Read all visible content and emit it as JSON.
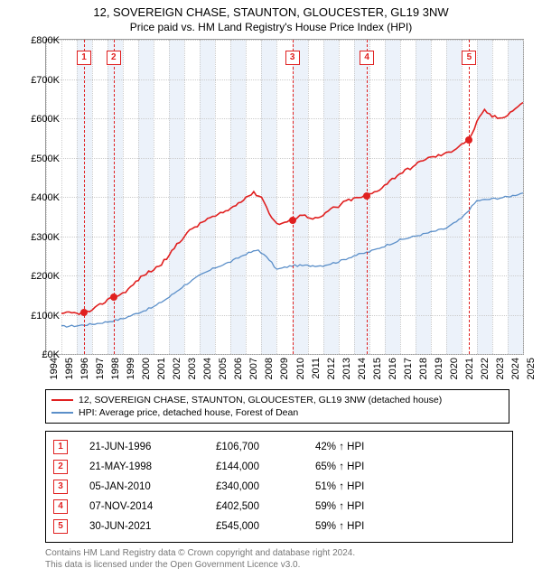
{
  "title": "12, SOVEREIGN CHASE, STAUNTON, GLOUCESTER, GL19 3NW",
  "subtitle": "Price paid vs. HM Land Registry's House Price Index (HPI)",
  "legend": {
    "series1": {
      "label": "12, SOVEREIGN CHASE, STAUNTON, GLOUCESTER, GL19 3NW (detached house)",
      "color": "#e02020"
    },
    "series2": {
      "label": "HPI: Average price, detached house, Forest of Dean",
      "color": "#5b8fc9"
    }
  },
  "y_axis": {
    "min": 0,
    "max": 800000,
    "step": 100000,
    "ticks": [
      "£0K",
      "£100K",
      "£200K",
      "£300K",
      "£400K",
      "£500K",
      "£600K",
      "£700K",
      "£800K"
    ]
  },
  "x_axis": {
    "min": 1994,
    "max": 2025,
    "step": 1,
    "ticks": [
      "1994",
      "1995",
      "1996",
      "1997",
      "1998",
      "1999",
      "2000",
      "2001",
      "2002",
      "2003",
      "2004",
      "2005",
      "2006",
      "2007",
      "2008",
      "2009",
      "2010",
      "2011",
      "2012",
      "2013",
      "2014",
      "2015",
      "2016",
      "2017",
      "2018",
      "2019",
      "2020",
      "2021",
      "2022",
      "2023",
      "2024",
      "2025"
    ]
  },
  "shaded_years": [
    1996,
    1998,
    2000,
    2002,
    2004,
    2006,
    2008,
    2010,
    2012,
    2014,
    2016,
    2018,
    2020,
    2022,
    2024
  ],
  "events": [
    {
      "n": "1",
      "year": 1996.47,
      "date": "21-JUN-1996",
      "price_txt": "£106,700",
      "price_v": 106700,
      "delta": "42% ↑ HPI"
    },
    {
      "n": "2",
      "year": 1998.39,
      "date": "21-MAY-1998",
      "price_txt": "£144,000",
      "price_v": 144000,
      "delta": "65% ↑ HPI"
    },
    {
      "n": "3",
      "year": 2010.01,
      "date": "05-JAN-2010",
      "price_txt": "£340,000",
      "price_v": 340000,
      "delta": "51% ↑ HPI"
    },
    {
      "n": "4",
      "year": 2014.85,
      "date": "07-NOV-2014",
      "price_txt": "£402,500",
      "price_v": 402500,
      "delta": "59% ↑ HPI"
    },
    {
      "n": "5",
      "year": 2021.5,
      "date": "30-JUN-2021",
      "price_txt": "£545,000",
      "price_v": 545000,
      "delta": "59% ↑ HPI"
    }
  ],
  "series1_pts": [
    [
      1995.0,
      100000
    ],
    [
      1995.5,
      105000
    ],
    [
      1996.0,
      103000
    ],
    [
      1996.47,
      106700
    ],
    [
      1997.0,
      110000
    ],
    [
      1997.5,
      125000
    ],
    [
      1998.0,
      138000
    ],
    [
      1998.39,
      144000
    ],
    [
      1999.0,
      155000
    ],
    [
      1999.5,
      170000
    ],
    [
      2000.0,
      190000
    ],
    [
      2000.5,
      205000
    ],
    [
      2001.0,
      215000
    ],
    [
      2001.5,
      230000
    ],
    [
      2002.0,
      250000
    ],
    [
      2002.5,
      280000
    ],
    [
      2003.0,
      300000
    ],
    [
      2003.5,
      320000
    ],
    [
      2004.0,
      330000
    ],
    [
      2004.5,
      345000
    ],
    [
      2005.0,
      350000
    ],
    [
      2005.5,
      360000
    ],
    [
      2006.0,
      370000
    ],
    [
      2006.5,
      385000
    ],
    [
      2007.0,
      400000
    ],
    [
      2007.5,
      410000
    ],
    [
      2008.0,
      400000
    ],
    [
      2008.5,
      360000
    ],
    [
      2009.0,
      330000
    ],
    [
      2009.5,
      335000
    ],
    [
      2010.01,
      340000
    ],
    [
      2010.5,
      355000
    ],
    [
      2011.0,
      350000
    ],
    [
      2011.5,
      345000
    ],
    [
      2012.0,
      350000
    ],
    [
      2012.5,
      370000
    ],
    [
      2013.0,
      375000
    ],
    [
      2013.5,
      390000
    ],
    [
      2014.0,
      395000
    ],
    [
      2014.85,
      402500
    ],
    [
      2015.5,
      415000
    ],
    [
      2016.0,
      430000
    ],
    [
      2016.5,
      445000
    ],
    [
      2017.0,
      460000
    ],
    [
      2017.5,
      470000
    ],
    [
      2018.0,
      480000
    ],
    [
      2018.5,
      495000
    ],
    [
      2019.0,
      500000
    ],
    [
      2019.5,
      505000
    ],
    [
      2020.0,
      510000
    ],
    [
      2020.5,
      520000
    ],
    [
      2021.0,
      535000
    ],
    [
      2021.5,
      545000
    ],
    [
      2022.0,
      590000
    ],
    [
      2022.5,
      620000
    ],
    [
      2023.0,
      605000
    ],
    [
      2023.5,
      600000
    ],
    [
      2024.0,
      610000
    ],
    [
      2024.5,
      625000
    ],
    [
      2025.0,
      640000
    ]
  ],
  "series2_pts": [
    [
      1995.0,
      70000
    ],
    [
      1996.0,
      72000
    ],
    [
      1997.0,
      76000
    ],
    [
      1998.0,
      82000
    ],
    [
      1999.0,
      90000
    ],
    [
      2000.0,
      105000
    ],
    [
      2001.0,
      120000
    ],
    [
      2002.0,
      145000
    ],
    [
      2003.0,
      175000
    ],
    [
      2004.0,
      200000
    ],
    [
      2005.0,
      220000
    ],
    [
      2006.0,
      235000
    ],
    [
      2007.0,
      255000
    ],
    [
      2007.8,
      265000
    ],
    [
      2008.5,
      240000
    ],
    [
      2009.0,
      215000
    ],
    [
      2009.5,
      220000
    ],
    [
      2010.0,
      225000
    ],
    [
      2011.0,
      225000
    ],
    [
      2012.0,
      225000
    ],
    [
      2013.0,
      235000
    ],
    [
      2014.0,
      250000
    ],
    [
      2015.0,
      260000
    ],
    [
      2016.0,
      275000
    ],
    [
      2017.0,
      290000
    ],
    [
      2018.0,
      300000
    ],
    [
      2019.0,
      310000
    ],
    [
      2020.0,
      320000
    ],
    [
      2021.0,
      345000
    ],
    [
      2022.0,
      390000
    ],
    [
      2023.0,
      395000
    ],
    [
      2024.0,
      400000
    ],
    [
      2025.0,
      410000
    ]
  ],
  "grid_color": "#cccccc",
  "footer": {
    "l1": "Contains HM Land Registry data © Crown copyright and database right 2024.",
    "l2": "This data is licensed under the Open Government Licence v3.0."
  }
}
